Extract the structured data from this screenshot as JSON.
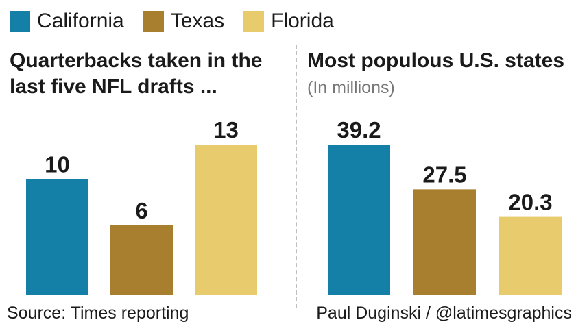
{
  "legend": [
    {
      "label": "California",
      "color": "#1480A8"
    },
    {
      "label": "Texas",
      "color": "#A87F2E"
    },
    {
      "label": "Florida",
      "color": "#E8CB6C"
    }
  ],
  "chart_data": [
    {
      "type": "bar",
      "title_line1": "Quarterbacks taken in the",
      "title_line2": "last five NFL drafts ...",
      "categories": [
        "California",
        "Texas",
        "Florida"
      ],
      "values": [
        10,
        6,
        13
      ],
      "data_labels": [
        "10",
        "6",
        "13"
      ],
      "colors": [
        "#1480A8",
        "#A87F2E",
        "#E8CB6C"
      ],
      "ylim": [
        0,
        13
      ],
      "grid": false
    },
    {
      "type": "bar",
      "title": "Most populous U.S. states",
      "subtitle": "(In millions)",
      "categories": [
        "California",
        "Texas",
        "Florida"
      ],
      "values": [
        39.2,
        27.5,
        20.3
      ],
      "data_labels": [
        "39.2",
        "27.5",
        "20.3"
      ],
      "colors": [
        "#1480A8",
        "#A87F2E",
        "#E8CB6C"
      ],
      "ylim": [
        0,
        39.2
      ],
      "grid": false
    }
  ],
  "footer": {
    "source": "Source: Times reporting",
    "credit": "Paul Duginski / @latimesgraphics"
  }
}
